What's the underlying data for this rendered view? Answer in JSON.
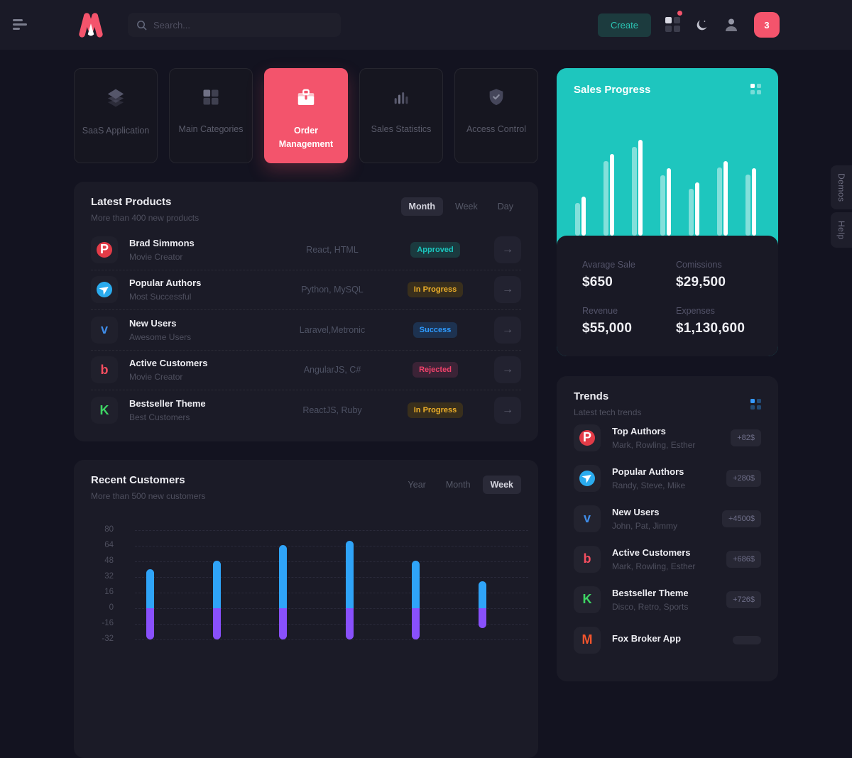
{
  "header": {
    "search_placeholder": "Search...",
    "create_label": "Create",
    "notification_count": "3"
  },
  "nav_cards": [
    {
      "label": "SaaS Application",
      "icon": "layers"
    },
    {
      "label": "Main Categories",
      "icon": "grid"
    },
    {
      "label": "Order Management",
      "icon": "briefcase",
      "active": true
    },
    {
      "label": "Sales Statistics",
      "icon": "chart-bars"
    },
    {
      "label": "Access Control",
      "icon": "shield-check"
    }
  ],
  "latest_products": {
    "title": "Latest Products",
    "subtitle": "More than 400 new products",
    "filters": [
      "Month",
      "Week",
      "Day"
    ],
    "active_filter": "Month",
    "rows": [
      {
        "icon": "pinterest",
        "glyph": "P",
        "title": "Brad Simmons",
        "subtitle": "Movie Creator",
        "tech": "React, HTML",
        "status": "Approved",
        "status_color": "teal"
      },
      {
        "icon": "telegram",
        "glyph": "➤",
        "title": "Popular Authors",
        "subtitle": "Most Successful",
        "tech": "Python, MySQL",
        "status": "In Progress",
        "status_color": "yellow"
      },
      {
        "icon": "vimeo",
        "glyph": "v",
        "title": "New Users",
        "subtitle": "Awesome Users",
        "tech": "Laravel,Metronic",
        "status": "Success",
        "status_color": "blue"
      },
      {
        "icon": "beats",
        "glyph": "b",
        "title": "Active Customers",
        "subtitle": "Movie Creator",
        "tech": "AngularJS, C#",
        "status": "Rejected",
        "status_color": "red"
      },
      {
        "icon": "kickstarter",
        "glyph": "K",
        "title": "Bestseller Theme",
        "subtitle": "Best Customers",
        "tech": "ReactJS, Ruby",
        "status": "In Progress",
        "status_color": "yellow"
      }
    ],
    "arrow_glyph": "→"
  },
  "sales_progress": {
    "title": "Sales Progress",
    "stats": [
      {
        "label": "Avarage Sale",
        "value": "$650"
      },
      {
        "label": "Comissions",
        "value": "$29,500"
      },
      {
        "label": "Revenue",
        "value": "$55,000"
      },
      {
        "label": "Expenses",
        "value": "$1,130,600"
      }
    ]
  },
  "recent_customers": {
    "title": "Recent Customers",
    "subtitle": "More than 500 new customers",
    "filters": [
      "Year",
      "Month",
      "Week"
    ],
    "active_filter": "Week"
  },
  "trends": {
    "title": "Trends",
    "subtitle": "Latest tech trends",
    "items": [
      {
        "icon": "pinterest",
        "glyph": "P",
        "title": "Top Authors",
        "subtitle": "Mark, Rowling, Esther",
        "badge": "+82$"
      },
      {
        "icon": "telegram",
        "glyph": "➤",
        "title": "Popular Authors",
        "subtitle": "Randy, Steve, Mike",
        "badge": "+280$"
      },
      {
        "icon": "vimeo",
        "glyph": "v",
        "title": "New Users",
        "subtitle": "John, Pat, Jimmy",
        "badge": "+4500$"
      },
      {
        "icon": "beats",
        "glyph": "b",
        "title": "Active Customers",
        "subtitle": "Mark, Rowling, Esther",
        "badge": "+686$"
      },
      {
        "icon": "kickstarter",
        "glyph": "K",
        "title": "Bestseller Theme",
        "subtitle": "Disco, Retro, Sports",
        "badge": "+726$"
      },
      {
        "icon": "fox",
        "glyph": "M",
        "title": "Fox Broker App",
        "subtitle": "",
        "badge": ""
      }
    ]
  },
  "side_tabs": [
    "Demos",
    "Help"
  ],
  "colors": {
    "accent_pink": "#F3546C",
    "accent_teal": "#1EC6BE",
    "bar_positive": "#2FA4F8",
    "bar_negative": "#8950FC",
    "status_approved": "#1BC5BD",
    "status_in_progress": "#F0B129",
    "status_success": "#2F9BFF",
    "status_rejected": "#F0426B"
  },
  "chart_data": [
    {
      "type": "bar",
      "title": "Sales Progress",
      "legend_position": "none",
      "grid": false,
      "note": "7 paired bars, values are relative heights (no axis labels shown)",
      "series": [
        {
          "name": "previous",
          "values": [
            46,
            105,
            125,
            85,
            66,
            96,
            86
          ]
        },
        {
          "name": "current",
          "values": [
            55,
            115,
            135,
            95,
            75,
            105,
            95
          ]
        }
      ]
    },
    {
      "type": "bar",
      "title": "Recent Customers",
      "grid": "dashed horizontal",
      "ylim": [
        -32,
        80
      ],
      "yticks": [
        80,
        64,
        48,
        32,
        16,
        0,
        -16,
        -32
      ],
      "series": [
        {
          "name": "positive",
          "color": "#2FA4F8",
          "values": [
            40,
            49,
            65,
            69,
            49,
            28
          ]
        },
        {
          "name": "negative",
          "color": "#8950FC",
          "values": [
            -32,
            -32,
            -32,
            -32,
            -32,
            -20
          ]
        }
      ]
    }
  ]
}
